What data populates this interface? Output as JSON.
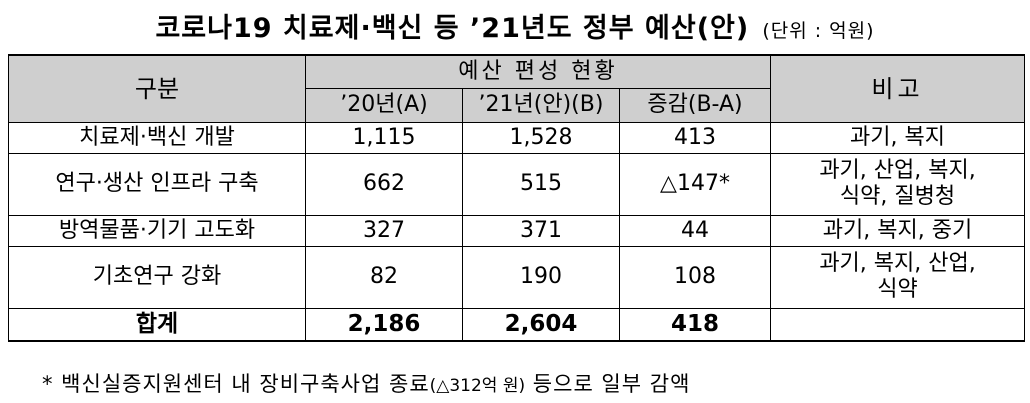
{
  "title": "코로나19 치료제·백신 등 ’21년도 정부 예산(안)",
  "unit": "(단위 : 억원)",
  "header": {
    "category": "구분",
    "budget_group": "예산 편성 현황",
    "col_2020": "’20년(A)",
    "col_2021": "’21년(안)(B)",
    "col_diff": "증감(B-A)",
    "remarks": "비고"
  },
  "rows": [
    {
      "name": "치료제·백신 개발",
      "v2020": "1,115",
      "v2021": "1,528",
      "diff": "413",
      "remark_1": "과기, 복지",
      "remark_2": ""
    },
    {
      "name": "연구·생산 인프라 구축",
      "v2020": "662",
      "v2021": "515",
      "diff": "△147*",
      "remark_1": "과기, 산업, 복지,",
      "remark_2": "식약, 질병청"
    },
    {
      "name": "방역물품·기기 고도화",
      "v2020": "327",
      "v2021": "371",
      "diff": "44",
      "remark_1": "과기, 복지, 중기",
      "remark_2": ""
    },
    {
      "name": "기초연구 강화",
      "v2020": "82",
      "v2021": "190",
      "diff": "108",
      "remark_1": "과기, 복지, 산업,",
      "remark_2": "식약"
    }
  ],
  "total": {
    "name": "합계",
    "v2020": "2,186",
    "v2021": "2,604",
    "diff": "418",
    "remark": ""
  },
  "footnote": {
    "prefix": "* 백신실증지원센터 내 장비구축사업 종료",
    "detail": "(△312억 원)",
    "suffix": " 등으로 일부 감액"
  }
}
